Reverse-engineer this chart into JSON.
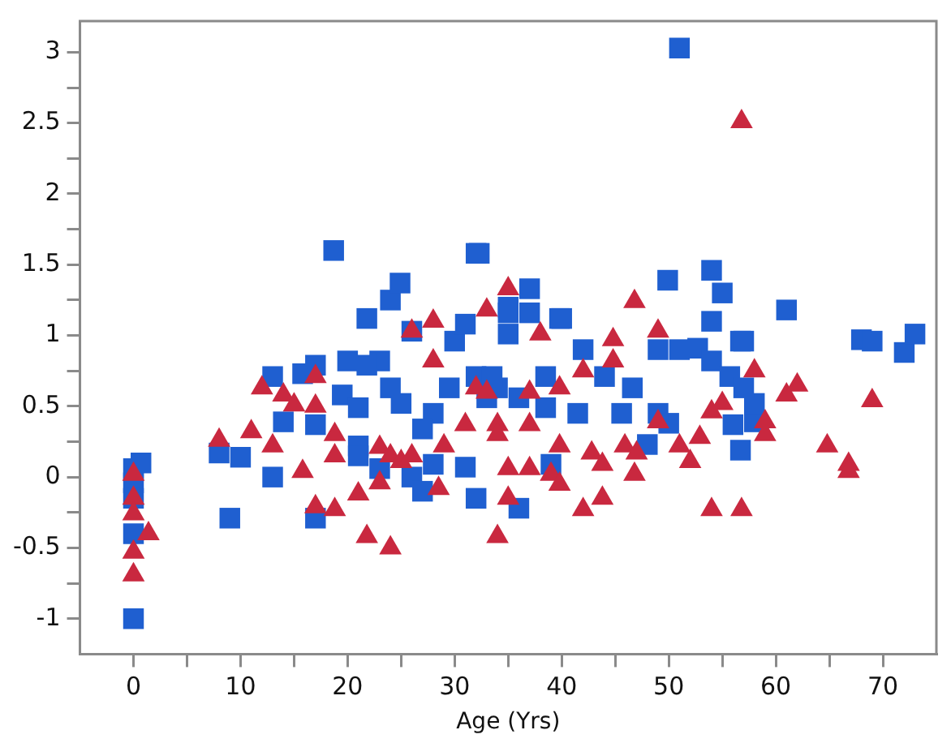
{
  "chart_data": {
    "type": "scatter",
    "xlabel": "Age (Yrs)",
    "xlim": [
      -5,
      75
    ],
    "ylim": [
      -1.25,
      3.22
    ],
    "xticks": [
      0,
      {
        "value": 5,
        "label": null
      },
      10,
      {
        "value": 15,
        "label": null
      },
      20,
      {
        "value": 25,
        "label": null
      },
      30,
      {
        "value": 35,
        "label": null
      },
      40,
      {
        "value": 45,
        "label": null
      },
      50,
      {
        "value": 55,
        "label": null
      },
      60,
      {
        "value": 65,
        "label": null
      },
      70
    ],
    "yticks": [
      -1,
      {
        "value": -0.75,
        "label": null
      },
      -0.5,
      {
        "value": -0.25,
        "label": null
      },
      0,
      {
        "value": 0.25,
        "label": null
      },
      0.5,
      {
        "value": 0.75,
        "label": null
      },
      1,
      {
        "value": 1.25,
        "label": null
      },
      1.5,
      {
        "value": 1.75,
        "label": null
      },
      2,
      {
        "value": 2.25,
        "label": null
      },
      2.5,
      {
        "value": 2.75,
        "label": null
      },
      3
    ],
    "series": [
      {
        "color": "#1f5fd0",
        "marker": "square",
        "x": [
          0,
          0.7,
          0,
          0,
          0,
          0,
          8,
          10,
          9,
          13,
          13,
          14,
          15.8,
          17,
          17,
          17,
          18.7,
          21.8,
          24,
          24.9,
          32,
          30,
          31,
          26,
          20,
          19.5,
          21,
          21,
          21,
          23,
          23,
          26,
          27,
          28,
          32,
          31,
          25,
          28,
          29.5,
          27,
          24,
          21.8,
          32,
          34,
          36,
          39,
          48,
          50,
          56.7,
          56,
          58,
          58,
          56.7,
          61,
          68,
          69,
          72,
          73,
          35,
          35,
          37,
          40,
          42,
          49,
          51,
          52.7,
          54,
          55.7,
          57,
          33.5,
          38.5,
          44,
          46.6,
          38.5,
          41.5,
          45.6,
          49,
          36,
          33,
          51,
          32.3,
          37,
          39.8,
          49.9,
          54,
          55,
          54,
          57,
          35
        ],
        "values": [
          0.06,
          0.1,
          -0.04,
          -0.15,
          -0.4,
          -1.0,
          0.17,
          0.14,
          -0.29,
          0.0,
          0.71,
          0.39,
          0.73,
          0.79,
          0.37,
          -0.29,
          1.6,
          1.12,
          1.25,
          1.37,
          1.58,
          0.96,
          1.08,
          1.03,
          0.82,
          0.58,
          0.49,
          0.22,
          0.15,
          0.06,
          0.82,
          0.0,
          -0.1,
          0.09,
          -0.15,
          0.07,
          0.52,
          0.45,
          0.63,
          0.34,
          0.63,
          0.79,
          0.71,
          0.63,
          -0.22,
          0.09,
          0.23,
          0.38,
          0.19,
          0.37,
          0.39,
          0.52,
          0.96,
          1.18,
          0.97,
          0.96,
          0.88,
          1.01,
          1.01,
          1.16,
          1.16,
          1.12,
          0.9,
          0.9,
          0.9,
          0.91,
          0.82,
          0.71,
          0.63,
          0.71,
          0.71,
          0.71,
          0.63,
          0.49,
          0.45,
          0.45,
          0.45,
          0.56,
          0.56,
          3.03,
          1.58,
          1.33,
          1.12,
          1.39,
          1.46,
          1.3,
          1.1,
          0.96,
          1.2
        ]
      },
      {
        "color": "#c9283f",
        "marker": "triangle",
        "x": [
          0,
          0,
          0,
          1.4,
          0,
          0,
          8,
          11,
          13,
          12,
          14,
          15,
          15.8,
          17,
          17,
          17,
          18.8,
          18.8,
          18.8,
          21,
          21.8,
          23,
          24,
          23,
          24,
          25,
          26,
          28,
          26,
          28.5,
          29,
          31,
          33,
          34,
          28,
          32,
          34,
          35,
          46.8,
          49,
          44.8,
          38,
          35,
          35,
          37,
          39,
          39.8,
          39.8,
          42,
          43.8,
          42.8,
          43.8,
          46.8,
          45.9,
          47,
          49,
          51,
          52,
          52.9,
          54,
          56.8,
          54,
          55,
          58,
          59,
          59,
          61,
          62,
          64.8,
          66.8,
          66.8,
          69,
          37,
          34,
          33,
          42,
          44.8,
          39.8,
          37,
          56.8
        ],
        "values": [
          0.02,
          -0.15,
          -0.26,
          -0.4,
          -0.53,
          -0.69,
          0.26,
          0.32,
          0.22,
          0.63,
          0.58,
          0.51,
          0.04,
          0.71,
          0.5,
          -0.21,
          0.3,
          0.15,
          -0.23,
          -0.12,
          -0.42,
          -0.04,
          -0.5,
          0.21,
          0.15,
          0.11,
          0.15,
          1.1,
          1.03,
          -0.08,
          0.22,
          0.37,
          1.18,
          -0.42,
          0.82,
          0.63,
          0.37,
          1.33,
          1.24,
          1.03,
          0.97,
          1.01,
          -0.15,
          0.06,
          0.06,
          0.02,
          -0.05,
          0.22,
          -0.23,
          -0.15,
          0.17,
          0.09,
          0.02,
          0.22,
          0.17,
          0.39,
          0.22,
          0.11,
          0.28,
          -0.23,
          -0.23,
          0.46,
          0.52,
          0.75,
          0.3,
          0.39,
          0.58,
          0.65,
          0.22,
          0.09,
          0.04,
          0.54,
          0.37,
          0.3,
          0.6,
          0.75,
          0.82,
          0.63,
          0.6,
          2.51
        ]
      }
    ]
  }
}
